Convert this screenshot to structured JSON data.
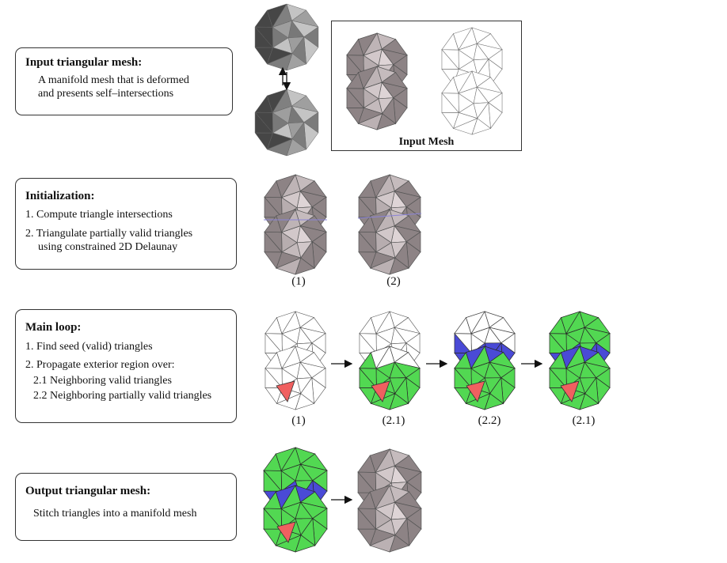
{
  "steps": [
    {
      "title": "Input triangular mesh:",
      "lines": [
        "A manifold mesh that is deformed",
        "and presents self–intersections"
      ]
    },
    {
      "title": "Initialization:",
      "lines": [
        "1. Compute triangle intersections",
        "2. Triangulate partially valid triangles",
        "using constrained 2D Delaunay"
      ]
    },
    {
      "title": "Main loop:",
      "lines": [
        "1. Find seed (valid) triangles",
        "2. Propagate exterior region over:",
        "2.1 Neighboring valid triangles",
        "2.2 Neighboring partially valid triangles"
      ]
    },
    {
      "title": "Output triangular mesh:",
      "lines": [
        "Stitch triangles into a manifold mesh"
      ]
    }
  ],
  "input_mesh_label": "Input Mesh",
  "init_captions": [
    "(1)",
    "(2)"
  ],
  "loop_captions": [
    "(1)",
    "(2.1)",
    "(2.2)",
    "(2.1)"
  ],
  "colors": {
    "valid": "#52d852",
    "partial": "#4a4ad6",
    "seed": "#f06060",
    "gray_mesh": "#cdbfc2",
    "edge": "#555555"
  }
}
